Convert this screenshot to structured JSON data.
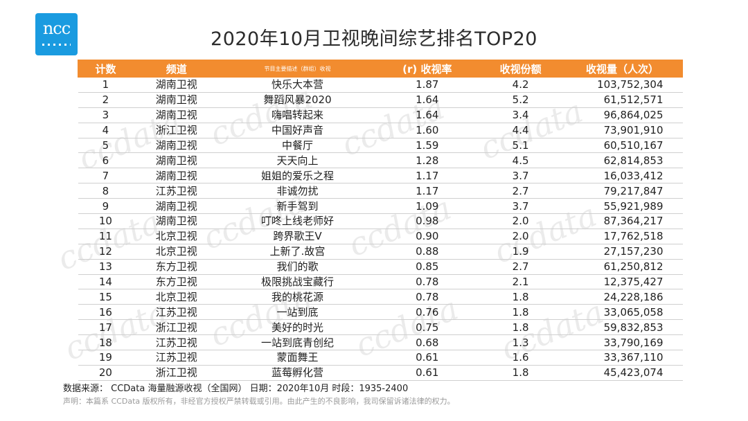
{
  "logo": {
    "text": "ncc"
  },
  "title": "2020年10月卫视晚间综艺排名TOP20",
  "table": {
    "headers": [
      "计数",
      "频道",
      "节目主要描述（群组）收视",
      "(r) 收视率",
      "收视份额",
      "收视量（人次）"
    ],
    "rows": [
      [
        "1",
        "湖南卫视",
        "快乐大本营",
        "1.87",
        "4.2",
        "103,752,304"
      ],
      [
        "2",
        "湖南卫视",
        "舞蹈风暴2020",
        "1.64",
        "5.2",
        "61,512,571"
      ],
      [
        "3",
        "湖南卫视",
        "嗨唱转起来",
        "1.64",
        "3.4",
        "96,864,025"
      ],
      [
        "4",
        "浙江卫视",
        "中国好声音",
        "1.60",
        "4.4",
        "73,901,910"
      ],
      [
        "5",
        "湖南卫视",
        "中餐厅",
        "1.59",
        "5.1",
        "60,510,167"
      ],
      [
        "6",
        "湖南卫视",
        "天天向上",
        "1.28",
        "4.5",
        "62,814,853"
      ],
      [
        "7",
        "湖南卫视",
        "姐姐的爱乐之程",
        "1.17",
        "3.7",
        "16,033,412"
      ],
      [
        "8",
        "江苏卫视",
        "非诚勿扰",
        "1.17",
        "2.7",
        "79,217,847"
      ],
      [
        "9",
        "湖南卫视",
        "新手驾到",
        "1.09",
        "3.7",
        "55,921,989"
      ],
      [
        "10",
        "湖南卫视",
        "叮咚上线老师好",
        "0.98",
        "2.0",
        "87,364,217"
      ],
      [
        "11",
        "北京卫视",
        "跨界歌王V",
        "0.90",
        "2.0",
        "17,762,518"
      ],
      [
        "12",
        "北京卫视",
        "上新了.故宫",
        "0.88",
        "1.9",
        "27,157,230"
      ],
      [
        "13",
        "东方卫视",
        "我们的歌",
        "0.85",
        "2.7",
        "61,250,812"
      ],
      [
        "14",
        "东方卫视",
        "极限挑战宝藏行",
        "0.78",
        "2.1",
        "12,375,427"
      ],
      [
        "15",
        "北京卫视",
        "我的桃花源",
        "0.78",
        "1.8",
        "24,228,186"
      ],
      [
        "16",
        "江苏卫视",
        "一站到底",
        "0.76",
        "1.8",
        "33,065,058"
      ],
      [
        "17",
        "浙江卫视",
        "美好的时光",
        "0.75",
        "1.8",
        "59,832,853"
      ],
      [
        "18",
        "江苏卫视",
        "一站到底青创纪",
        "0.68",
        "1.3",
        "33,790,169"
      ],
      [
        "19",
        "江苏卫视",
        "蒙面舞王",
        "0.61",
        "1.6",
        "33,367,110"
      ],
      [
        "20",
        "浙江卫视",
        "蓝莓孵化营",
        "0.61",
        "1.8",
        "45,423,074"
      ]
    ]
  },
  "footer": {
    "source": "数据来源： CCData 海量融源收视（全国网） 日期：2020年10月  时段：1935-2400",
    "disclaimer": "声明：本篇系 CCData 版权所有，非经官方授权严禁转载或引用。由此产生的不良影响，我司保留诉诸法律的权力。"
  },
  "watermark": "ccdata",
  "colors": {
    "header_bg": "#f28c2f",
    "logo_bg": "#1a9be0"
  }
}
